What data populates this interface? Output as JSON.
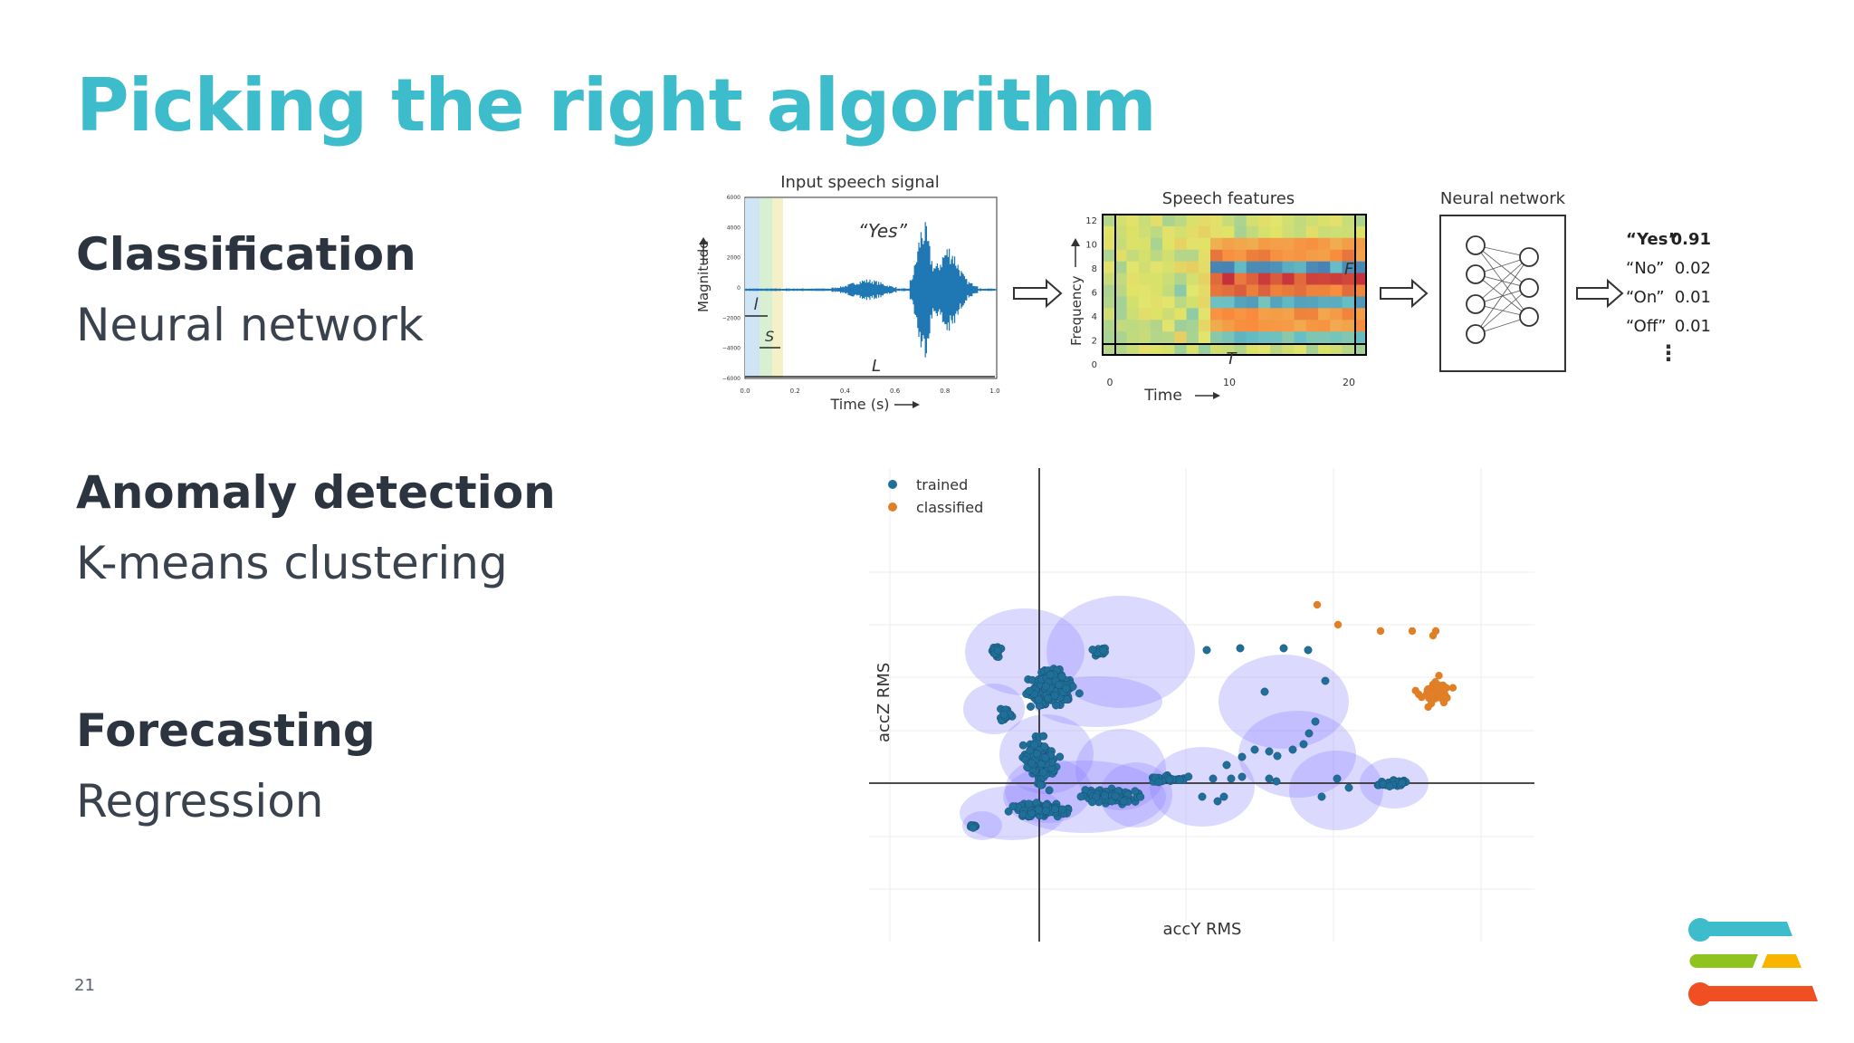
{
  "slide": {
    "title": "Picking the right algorithm",
    "page_number": "21"
  },
  "sections": [
    {
      "heading": "Classification",
      "subtitle": "Neural network"
    },
    {
      "heading": "Anomaly detection",
      "subtitle": "K-means clustering"
    },
    {
      "heading": "Forecasting",
      "subtitle": "Regression"
    }
  ],
  "speech_diagram": {
    "signal_title": "Input speech signal",
    "yes_quote": "“Yes”",
    "ylabel": "Magnitude",
    "xlabel": "Time (s)",
    "yticks": [
      "6000",
      "4000",
      "2000",
      "0",
      "−2000",
      "−4000",
      "−6000"
    ],
    "xticks": [
      "0.0",
      "0.2",
      "0.4",
      "0.6",
      "0.8",
      "1.0"
    ],
    "l_label": "l",
    "s_label": "S",
    "L_label": "L",
    "features_title": "Speech features",
    "features_ylabel": "Frequency",
    "features_xlabel": "Time",
    "features_yticks": [
      "12",
      "10",
      "8",
      "6",
      "4",
      "2",
      "0"
    ],
    "features_xticks": [
      "0",
      "10",
      "20"
    ],
    "F_label": "F",
    "T_label": "T",
    "network_title": "Neural network",
    "outputs": [
      {
        "word": "“Yes”",
        "score": "0.91",
        "bold": true
      },
      {
        "word": "“No”",
        "score": "0.02",
        "bold": false
      },
      {
        "word": "“On”",
        "score": "0.01",
        "bold": false
      },
      {
        "word": "“Off”",
        "score": "0.01",
        "bold": false
      }
    ],
    "ellipsis": "⋮"
  },
  "cluster_plot": {
    "legend": [
      {
        "label": "trained",
        "color": "#1f6f9a"
      },
      {
        "label": "classified",
        "color": "#e07f26"
      }
    ],
    "xlabel": "accY RMS",
    "ylabel": "accZ RMS",
    "cluster_color": "#8a80ff",
    "trained_color": "#1f6f9a",
    "classified_color": "#e07f26"
  },
  "logo": {
    "colors": [
      "#3dbccb",
      "#8fc31f",
      "#f7b500",
      "#f04e23"
    ]
  }
}
